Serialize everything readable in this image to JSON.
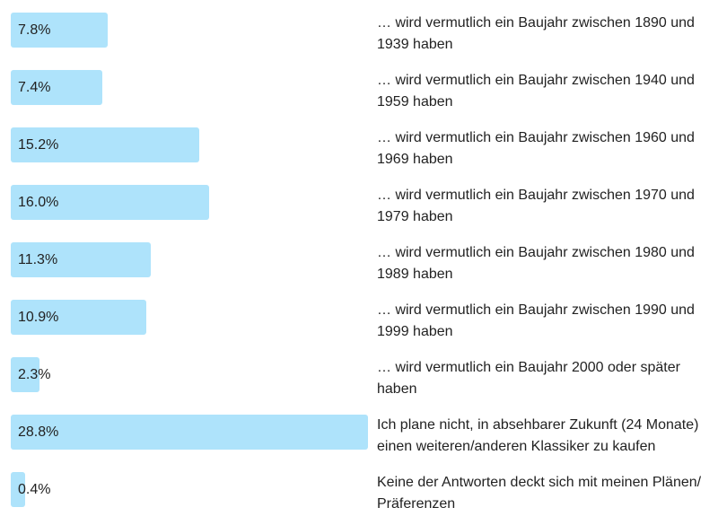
{
  "chart_data": {
    "type": "bar",
    "orientation": "horizontal",
    "unit": "%",
    "xlim": [
      0,
      28.8
    ],
    "grid": false,
    "bar_color": "#aee3fb",
    "categories": [
      "… wird vermutlich ein Baujahr zwischen 1890 und 1939 haben",
      "… wird vermutlich ein Baujahr zwischen 1940 und 1959 haben",
      "… wird vermutlich ein Baujahr zwischen 1960 und 1969 haben",
      "… wird vermutlich ein Baujahr zwischen 1970 und 1979 haben",
      "… wird vermutlich ein Baujahr zwischen 1980 und 1989 haben",
      "… wird vermutlich ein Baujahr zwischen 1990 und 1999 haben",
      "… wird vermutlich ein Baujahr 2000 oder später haben",
      "Ich plane nicht, in absehbarer Zukunft (24 Monate) einen weiteren/anderen Klassiker zu kaufen",
      "Keine der Antworten deckt sich mit meinen Plänen/ Präferenzen"
    ],
    "values": [
      7.8,
      7.4,
      15.2,
      16.0,
      11.3,
      10.9,
      2.3,
      28.8,
      0.4
    ],
    "value_labels": [
      "7.8%",
      "7.4%",
      "15.2%",
      "16.0%",
      "11.3%",
      "10.9%",
      "2.3%",
      "28.8%",
      "0.4%"
    ]
  }
}
